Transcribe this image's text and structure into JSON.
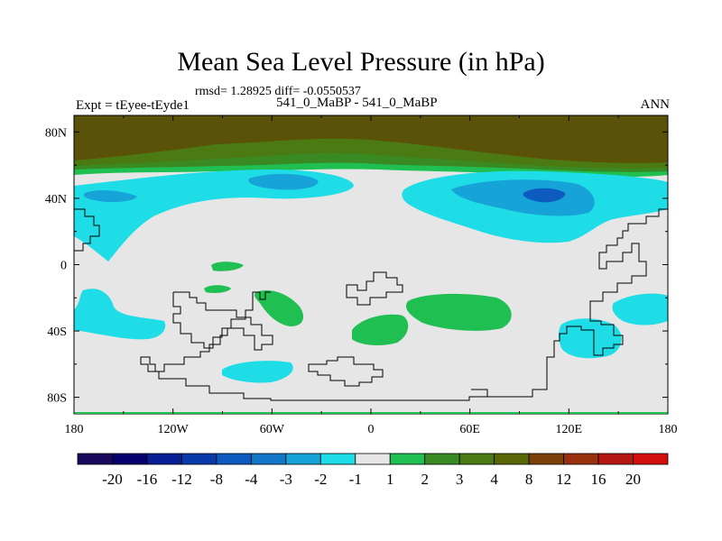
{
  "chart_data": {
    "type": "contour-map",
    "title": "Mean Sea Level Pressure (in hPa)",
    "stats_text": "rmsd= 1.28925 diff= -0.0550537",
    "left_subtitle": "Expt = tEyee-tEyde1",
    "center_subtitle": "541_0_MaBP - 541_0_MaBP",
    "right_subtitle": "ANN",
    "x_ticks": [
      "180",
      "120W",
      "60W",
      "0",
      "60E",
      "120E",
      "180"
    ],
    "y_ticks": [
      "80N",
      "40N",
      "0",
      "40S",
      "80S"
    ],
    "xlim": [
      -180,
      180
    ],
    "ylim": [
      -90,
      90
    ],
    "colorbar": {
      "levels": [
        "-20",
        "-16",
        "-12",
        "-8",
        "-4",
        "-3",
        "-2",
        "-1",
        "1",
        "2",
        "3",
        "4",
        "8",
        "12",
        "16",
        "20"
      ],
      "colors": [
        "#1a0a5e",
        "#06006e",
        "#081f96",
        "#0a3aaa",
        "#0d5bbf",
        "#1276c9",
        "#16a4d8",
        "#1fdde6",
        "#e6e6e6",
        "#1fbf52",
        "#3a8a23",
        "#4b7a12",
        "#5a6708",
        "#7a4108",
        "#98300d",
        "#b51812",
        "#d40f0f"
      ]
    },
    "colors": {
      "background": "#e6e6e6",
      "light_blue": "#1fdde6",
      "mid_blue": "#16a4d8",
      "dark_blue": "#0d5bbf",
      "green": "#1fbf52",
      "dark_green": "#3a8a23",
      "olive": "#4b7a12",
      "brown": "#5a5208"
    }
  }
}
